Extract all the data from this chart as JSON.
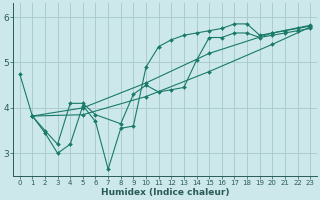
{
  "xlabel": "Humidex (Indice chaleur)",
  "bg_color": "#cce8ea",
  "grid_color": "#aacdd0",
  "line_color": "#1a7a6a",
  "xlim": [
    -0.5,
    23.5
  ],
  "ylim": [
    2.5,
    6.3
  ],
  "yticks": [
    3,
    4,
    5,
    6
  ],
  "xticks": [
    0,
    1,
    2,
    3,
    4,
    5,
    6,
    7,
    8,
    9,
    10,
    11,
    12,
    13,
    14,
    15,
    16,
    17,
    18,
    19,
    20,
    21,
    22,
    23
  ],
  "series": [
    {
      "x": [
        0,
        1,
        2,
        3,
        4,
        5,
        6,
        7,
        8,
        9,
        10,
        11,
        12,
        13,
        14,
        15,
        16,
        17,
        18,
        19,
        20,
        21,
        22,
        23
      ],
      "y": [
        4.75,
        3.82,
        3.45,
        3.0,
        3.2,
        4.05,
        3.7,
        2.65,
        3.55,
        3.6,
        4.9,
        5.35,
        5.5,
        5.6,
        5.65,
        5.7,
        5.75,
        5.85,
        5.85,
        5.6,
        5.65,
        5.7,
        5.75,
        5.8
      ]
    },
    {
      "x": [
        1,
        5,
        10,
        15,
        20,
        23
      ],
      "y": [
        3.82,
        3.85,
        4.25,
        4.8,
        5.4,
        5.78
      ]
    },
    {
      "x": [
        1,
        5,
        10,
        15,
        20,
        23
      ],
      "y": [
        3.82,
        4.0,
        4.55,
        5.2,
        5.65,
        5.82
      ]
    },
    {
      "x": [
        1,
        2,
        3,
        4,
        5,
        6,
        8,
        9,
        10,
        11,
        12,
        13,
        14,
        15,
        16,
        17,
        18,
        19,
        20,
        21,
        22,
        23
      ],
      "y": [
        3.82,
        3.5,
        3.2,
        4.1,
        4.1,
        3.85,
        3.65,
        4.3,
        4.5,
        4.35,
        4.4,
        4.45,
        5.05,
        5.55,
        5.55,
        5.65,
        5.65,
        5.55,
        5.6,
        5.65,
        5.7,
        5.75
      ]
    }
  ]
}
